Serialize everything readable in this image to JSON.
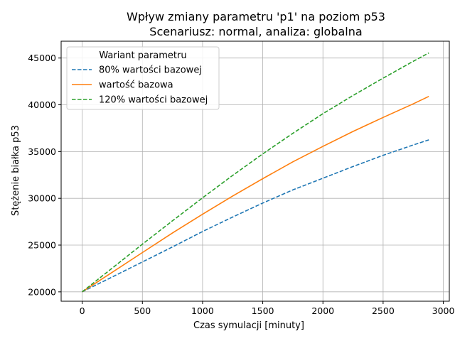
{
  "chart_data": {
    "type": "line",
    "title": "Wpływ zmiany parametru 'p1' na poziom p53",
    "subtitle": "Scenariusz: normal, analiza: globalna",
    "xlabel": "Czas symulacji [minuty]",
    "ylabel": "Stężenie białka p53",
    "xlim": [
      -175,
      3050
    ],
    "ylim": [
      19000,
      46800
    ],
    "xticks": [
      0,
      500,
      1000,
      1500,
      2000,
      2500,
      3000
    ],
    "yticks": [
      20000,
      25000,
      30000,
      35000,
      40000,
      45000
    ],
    "grid": true,
    "legend": {
      "title": "Wariant parametru",
      "placement": "top-left"
    },
    "x": [
      0,
      250,
      500,
      750,
      1000,
      1250,
      1500,
      1750,
      2000,
      2250,
      2500,
      2750,
      2880
    ],
    "series": [
      {
        "name": "80% wartości bazowej",
        "color": "#1f77b4",
        "dash": "dashed",
        "values": [
          20000,
          21600,
          23200,
          24800,
          26450,
          28000,
          29500,
          30900,
          32150,
          33400,
          34600,
          35700,
          36250
        ]
      },
      {
        "name": "wartość bazowa",
        "color": "#ff7f0e",
        "dash": "solid",
        "values": [
          20000,
          22100,
          24200,
          26300,
          28300,
          30250,
          32100,
          33900,
          35550,
          37150,
          38650,
          40100,
          40900
        ]
      },
      {
        "name": "120% wartości bazowej",
        "color": "#2ca02c",
        "dash": "dashed",
        "values": [
          20000,
          22550,
          25100,
          27600,
          30050,
          32450,
          34750,
          36950,
          39050,
          41000,
          42850,
          44650,
          45550
        ]
      }
    ]
  }
}
